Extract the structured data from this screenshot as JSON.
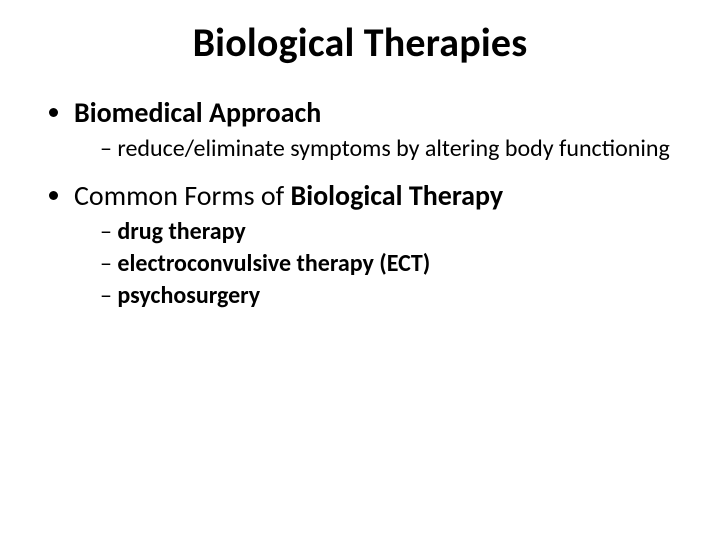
{
  "title": "Biological Therapies",
  "bullets": [
    {
      "prefix": "",
      "bold": "Biomedical Approach",
      "suffix": "",
      "sub": [
        {
          "prefix": "reduce/eliminate symptoms by altering body functioning",
          "bold": "",
          "suffix": ""
        }
      ]
    },
    {
      "prefix": "Common Forms of ",
      "bold": "Biological Therapy",
      "suffix": "",
      "sub": [
        {
          "prefix": "",
          "bold": "drug therapy",
          "suffix": ""
        },
        {
          "prefix": "",
          "bold": "electroconvulsive therapy (ECT)",
          "suffix": ""
        },
        {
          "prefix": "",
          "bold": "psychosurgery",
          "suffix": ""
        }
      ]
    }
  ]
}
